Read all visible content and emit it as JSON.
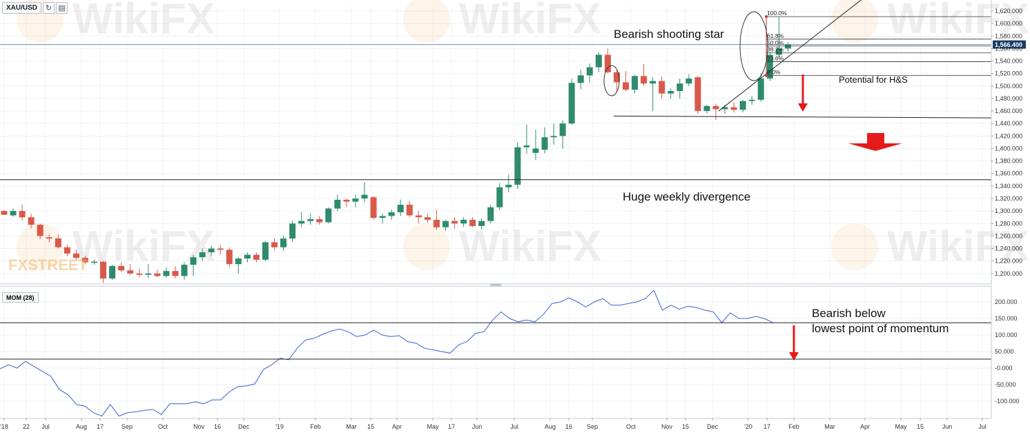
{
  "toolbar": {
    "symbol": "XAU/USD",
    "refresh_icon": "refresh-icon",
    "calendar_icon": "calendar-icon"
  },
  "indicator": {
    "label": "MOM (28)"
  },
  "watermarks": {
    "wikifx": "WikiFX",
    "fxstreet": "FXSTREET"
  },
  "annotations": {
    "shooting_star": "Bearish shooting star",
    "divergence": "Huge weekly divergence",
    "hs": "Potential for H&S",
    "bearish_mom_line1": "Bearish below",
    "bearish_mom_line2": "lowest point of momentum"
  },
  "colors": {
    "up": "#2f8b6e",
    "down": "#d9594a",
    "momentum": "#3c5fd4",
    "arrow": "#e51a1a",
    "price_line": "#6a8ab0",
    "price_tag": "#1c3a63"
  },
  "chart_data": [
    {
      "type": "candlestick",
      "title": "",
      "symbol": "XAU/USD",
      "timeframe": "weekly",
      "ylim": [
        1180,
        1630
      ],
      "y_ticks": [
        1200,
        1220,
        1240,
        1260,
        1280,
        1300,
        1320,
        1340,
        1360,
        1380,
        1400,
        1420,
        1440,
        1460,
        1480,
        1500,
        1520,
        1540,
        1560,
        1580,
        1600,
        1620
      ],
      "current_price": "1,566.400",
      "current_price_value": 1566.4,
      "candles": [
        {
          "o": 1300,
          "h": 1302,
          "l": 1294,
          "c": 1294
        },
        {
          "o": 1293,
          "h": 1304,
          "l": 1291,
          "c": 1300
        },
        {
          "o": 1300,
          "h": 1310,
          "l": 1285,
          "c": 1290
        },
        {
          "o": 1290,
          "h": 1296,
          "l": 1272,
          "c": 1278
        },
        {
          "o": 1278,
          "h": 1280,
          "l": 1255,
          "c": 1260
        },
        {
          "o": 1258,
          "h": 1262,
          "l": 1250,
          "c": 1256
        },
        {
          "o": 1256,
          "h": 1262,
          "l": 1240,
          "c": 1242
        },
        {
          "o": 1242,
          "h": 1246,
          "l": 1228,
          "c": 1232
        },
        {
          "o": 1232,
          "h": 1238,
          "l": 1222,
          "c": 1225
        },
        {
          "o": 1225,
          "h": 1228,
          "l": 1215,
          "c": 1218
        },
        {
          "o": 1218,
          "h": 1222,
          "l": 1214,
          "c": 1219
        },
        {
          "o": 1219,
          "h": 1220,
          "l": 1185,
          "c": 1192
        },
        {
          "o": 1192,
          "h": 1214,
          "l": 1190,
          "c": 1212
        },
        {
          "o": 1212,
          "h": 1218,
          "l": 1202,
          "c": 1205
        },
        {
          "o": 1205,
          "h": 1215,
          "l": 1198,
          "c": 1200
        },
        {
          "o": 1200,
          "h": 1208,
          "l": 1194,
          "c": 1198
        },
        {
          "o": 1198,
          "h": 1215,
          "l": 1193,
          "c": 1200
        },
        {
          "o": 1200,
          "h": 1206,
          "l": 1194,
          "c": 1196
        },
        {
          "o": 1196,
          "h": 1210,
          "l": 1193,
          "c": 1204
        },
        {
          "o": 1204,
          "h": 1212,
          "l": 1192,
          "c": 1196
        },
        {
          "o": 1196,
          "h": 1218,
          "l": 1190,
          "c": 1214
        },
        {
          "o": 1214,
          "h": 1230,
          "l": 1196,
          "c": 1226
        },
        {
          "o": 1226,
          "h": 1240,
          "l": 1220,
          "c": 1234
        },
        {
          "o": 1234,
          "h": 1244,
          "l": 1228,
          "c": 1240
        },
        {
          "o": 1240,
          "h": 1245,
          "l": 1230,
          "c": 1238
        },
        {
          "o": 1238,
          "h": 1242,
          "l": 1210,
          "c": 1215
        },
        {
          "o": 1215,
          "h": 1226,
          "l": 1200,
          "c": 1224
        },
        {
          "o": 1224,
          "h": 1234,
          "l": 1218,
          "c": 1230
        },
        {
          "o": 1230,
          "h": 1234,
          "l": 1218,
          "c": 1222
        },
        {
          "o": 1222,
          "h": 1252,
          "l": 1220,
          "c": 1250
        },
        {
          "o": 1250,
          "h": 1256,
          "l": 1238,
          "c": 1242
        },
        {
          "o": 1242,
          "h": 1260,
          "l": 1236,
          "c": 1256
        },
        {
          "o": 1256,
          "h": 1284,
          "l": 1250,
          "c": 1280
        },
        {
          "o": 1280,
          "h": 1298,
          "l": 1274,
          "c": 1284
        },
        {
          "o": 1284,
          "h": 1296,
          "l": 1278,
          "c": 1287
        },
        {
          "o": 1287,
          "h": 1292,
          "l": 1278,
          "c": 1282
        },
        {
          "o": 1282,
          "h": 1306,
          "l": 1280,
          "c": 1304
        },
        {
          "o": 1304,
          "h": 1326,
          "l": 1300,
          "c": 1318
        },
        {
          "o": 1318,
          "h": 1320,
          "l": 1306,
          "c": 1315
        },
        {
          "o": 1315,
          "h": 1326,
          "l": 1306,
          "c": 1320
        },
        {
          "o": 1320,
          "h": 1346,
          "l": 1314,
          "c": 1326
        },
        {
          "o": 1322,
          "h": 1324,
          "l": 1286,
          "c": 1289
        },
        {
          "o": 1289,
          "h": 1296,
          "l": 1280,
          "c": 1292
        },
        {
          "o": 1292,
          "h": 1302,
          "l": 1286,
          "c": 1298
        },
        {
          "o": 1298,
          "h": 1318,
          "l": 1292,
          "c": 1310
        },
        {
          "o": 1310,
          "h": 1316,
          "l": 1290,
          "c": 1293
        },
        {
          "o": 1293,
          "h": 1300,
          "l": 1280,
          "c": 1290
        },
        {
          "o": 1290,
          "h": 1296,
          "l": 1281,
          "c": 1286
        },
        {
          "o": 1286,
          "h": 1302,
          "l": 1270,
          "c": 1274
        },
        {
          "o": 1274,
          "h": 1286,
          "l": 1268,
          "c": 1284
        },
        {
          "o": 1284,
          "h": 1290,
          "l": 1272,
          "c": 1280
        },
        {
          "o": 1280,
          "h": 1290,
          "l": 1275,
          "c": 1286
        },
        {
          "o": 1286,
          "h": 1290,
          "l": 1274,
          "c": 1276
        },
        {
          "o": 1276,
          "h": 1288,
          "l": 1270,
          "c": 1284
        },
        {
          "o": 1284,
          "h": 1310,
          "l": 1280,
          "c": 1306
        },
        {
          "o": 1306,
          "h": 1345,
          "l": 1302,
          "c": 1338
        },
        {
          "o": 1338,
          "h": 1358,
          "l": 1330,
          "c": 1342
        },
        {
          "o": 1342,
          "h": 1410,
          "l": 1335,
          "c": 1402
        },
        {
          "o": 1402,
          "h": 1438,
          "l": 1392,
          "c": 1405
        },
        {
          "o": 1393,
          "h": 1430,
          "l": 1382,
          "c": 1400
        },
        {
          "o": 1398,
          "h": 1434,
          "l": 1392,
          "c": 1418
        },
        {
          "o": 1418,
          "h": 1440,
          "l": 1406,
          "c": 1420
        },
        {
          "o": 1420,
          "h": 1445,
          "l": 1400,
          "c": 1440
        },
        {
          "o": 1440,
          "h": 1512,
          "l": 1438,
          "c": 1505
        },
        {
          "o": 1505,
          "h": 1526,
          "l": 1495,
          "c": 1517
        },
        {
          "o": 1517,
          "h": 1536,
          "l": 1506,
          "c": 1530
        },
        {
          "o": 1530,
          "h": 1554,
          "l": 1522,
          "c": 1550
        },
        {
          "o": 1550,
          "h": 1560,
          "l": 1520,
          "c": 1522
        },
        {
          "o": 1522,
          "h": 1526,
          "l": 1490,
          "c": 1506
        },
        {
          "o": 1506,
          "h": 1524,
          "l": 1492,
          "c": 1494
        },
        {
          "o": 1494,
          "h": 1518,
          "l": 1488,
          "c": 1516
        },
        {
          "o": 1516,
          "h": 1535,
          "l": 1500,
          "c": 1504
        },
        {
          "o": 1504,
          "h": 1514,
          "l": 1460,
          "c": 1508
        },
        {
          "o": 1508,
          "h": 1515,
          "l": 1480,
          "c": 1488
        },
        {
          "o": 1488,
          "h": 1496,
          "l": 1480,
          "c": 1492
        },
        {
          "o": 1492,
          "h": 1512,
          "l": 1480,
          "c": 1504
        },
        {
          "o": 1504,
          "h": 1519,
          "l": 1500,
          "c": 1512
        },
        {
          "o": 1514,
          "h": 1516,
          "l": 1455,
          "c": 1460
        },
        {
          "o": 1460,
          "h": 1470,
          "l": 1456,
          "c": 1468
        },
        {
          "o": 1468,
          "h": 1472,
          "l": 1446,
          "c": 1463
        },
        {
          "o": 1463,
          "h": 1470,
          "l": 1455,
          "c": 1466
        },
        {
          "o": 1466,
          "h": 1474,
          "l": 1458,
          "c": 1462
        },
        {
          "o": 1462,
          "h": 1478,
          "l": 1458,
          "c": 1476
        },
        {
          "o": 1476,
          "h": 1484,
          "l": 1470,
          "c": 1478
        },
        {
          "o": 1478,
          "h": 1520,
          "l": 1475,
          "c": 1512
        },
        {
          "o": 1512,
          "h": 1555,
          "l": 1508,
          "c": 1550
        },
        {
          "o": 1550,
          "h": 1610,
          "l": 1545,
          "c": 1560
        },
        {
          "o": 1560,
          "h": 1570,
          "l": 1555,
          "c": 1567
        }
      ],
      "x_ticks": [
        "'18",
        "22",
        "Jul",
        "Aug",
        "17",
        "Sep",
        "Oct",
        "Nov",
        "16",
        "Dec",
        "'19",
        "Feb",
        "Mar",
        "15",
        "Apr",
        "May",
        "17",
        "Jun",
        "Jul",
        "Aug",
        "16",
        "Sep",
        "Oct",
        "Nov",
        "15",
        "Dec",
        "'20",
        "17",
        "Feb",
        "Mar",
        "Apr",
        "May",
        "15",
        "Jun",
        "Jul"
      ],
      "fibonacci": {
        "high": 1611,
        "low": 1517,
        "levels": [
          {
            "label": "100.0%",
            "value": 1611
          },
          {
            "label": "61.8%",
            "value": 1575
          },
          {
            "label": "50.0%",
            "value": 1564
          },
          {
            "label": "38.2%",
            "value": 1553
          },
          {
            "label": "23.6%",
            "value": 1539
          },
          {
            "label": "0.0%",
            "value": 1517
          }
        ]
      },
      "horizontal_lines": [
        1350,
        1449
      ]
    },
    {
      "type": "line",
      "title": "",
      "name": "MOM (28)",
      "ylim": [
        -145,
        240
      ],
      "y_ticks": [
        "200.000",
        "150.000",
        "100.000",
        "50.000",
        "-0.000",
        "-50.000",
        "-100.000"
      ],
      "y_tick_values": [
        200,
        150,
        100,
        50,
        0,
        -50,
        -100
      ],
      "values": [
        -2,
        10,
        0,
        20,
        5,
        -10,
        -25,
        -65,
        -80,
        -110,
        -115,
        -135,
        -145,
        -110,
        -145,
        -135,
        -132,
        -128,
        -125,
        -140,
        -108,
        -108,
        -108,
        -102,
        -108,
        -96,
        -96,
        -72,
        -56,
        -54,
        -48,
        -5,
        10,
        30,
        25,
        60,
        85,
        90,
        102,
        112,
        118,
        110,
        95,
        100,
        115,
        100,
        95,
        98,
        80,
        75,
        60,
        55,
        50,
        45,
        70,
        80,
        105,
        110,
        145,
        170,
        150,
        140,
        145,
        140,
        162,
        195,
        200,
        212,
        200,
        185,
        200,
        210,
        190,
        190,
        195,
        200,
        210,
        235,
        175,
        190,
        178,
        187,
        183,
        175,
        170,
        137,
        167,
        150,
        150,
        156,
        150,
        138
      ],
      "horizontal_lines": [
        137,
        27
      ]
    }
  ]
}
